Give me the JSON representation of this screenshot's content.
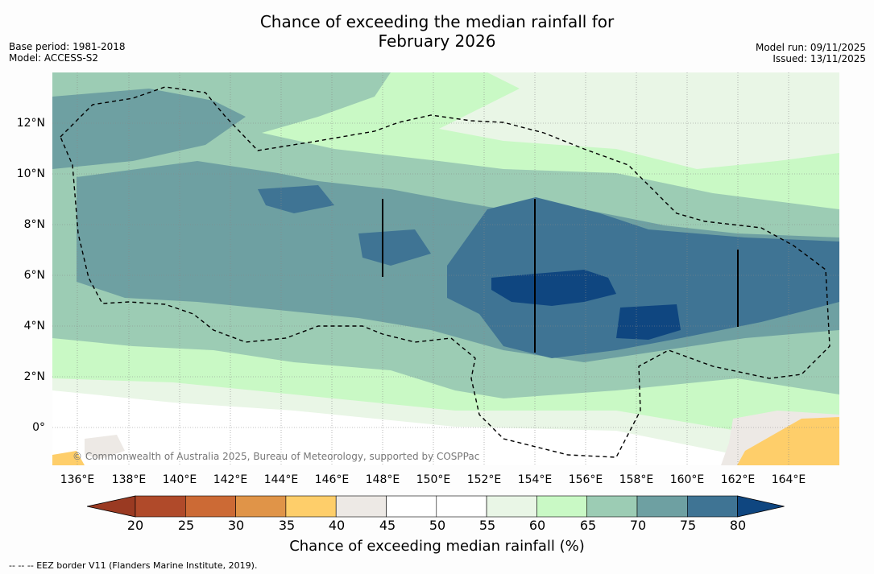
{
  "title_line1": "Chance of exceeding the median rainfall for",
  "title_line2": "February 2026",
  "base_period": "Base period: 1981-2018",
  "model": "Model: ACCESS-S2",
  "model_run": "Model run: 09/11/2025",
  "issued": "Issued: 13/11/2025",
  "copyright": "© Commonwealth of Australia 2025, Bureau of Meteorology, supported by COSPPac",
  "lat_labels": [
    "12°N",
    "10°N",
    "8°N",
    "6°N",
    "4°N",
    "2°N",
    "0°"
  ],
  "lon_labels": [
    "136°E",
    "138°E",
    "140°E",
    "142°E",
    "144°E",
    "146°E",
    "148°E",
    "150°E",
    "152°E",
    "154°E",
    "156°E",
    "158°E",
    "160°E",
    "162°E",
    "164°E"
  ],
  "colorbar": {
    "title": "Chance of exceeding median rainfall (%)",
    "ticks": [
      "20",
      "25",
      "30",
      "35",
      "40",
      "45",
      "50",
      "55",
      "60",
      "65",
      "70",
      "75",
      "80"
    ],
    "colors": [
      "#9a3a22",
      "#b04a2a",
      "#cc6a35",
      "#e09448",
      "#fece6a",
      "#ede9e5",
      "#ffffff",
      "#ffffff",
      "#e9f6e6",
      "#c9f9c5",
      "#9cccb4",
      "#6ea0a2",
      "#3f7494",
      "#0f4680"
    ]
  },
  "footnote": "-- -- -- EEZ border V11 (Flanders Marine Institute, 2019)."
}
